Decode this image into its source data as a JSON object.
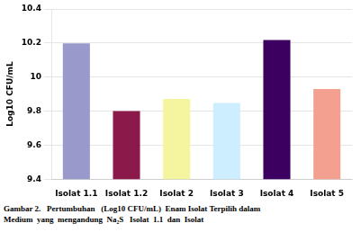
{
  "chart_data": {
    "type": "bar",
    "categories": [
      "Isolat 1.1",
      "Isolat 1.2",
      "Isolat 2",
      "Isolat 3",
      "Isolat 4",
      "Isolat 5"
    ],
    "values": [
      10.198,
      9.8,
      9.872,
      9.848,
      10.218,
      9.93
    ],
    "colors": [
      "#9999CC",
      "#8B1A4A",
      "#F5F5A0",
      "#CCEEFF",
      "#3B0060",
      "#F4A090"
    ],
    "ylabel": "Log10 CFU/mL",
    "ylim": [
      9.4,
      10.4
    ],
    "yticks": [
      9.4,
      9.6,
      9.8,
      10,
      10.2,
      10.4
    ],
    "grid": true,
    "annotations": [
      "Gambar 2.   Pertumbuhan   (Log10 CFU/mL)  Enam Isolat Terpilih dalam",
      "Medium  yang  mengandung  Na₂S   Isolat  1.1  dan  Isolat"
    ]
  }
}
